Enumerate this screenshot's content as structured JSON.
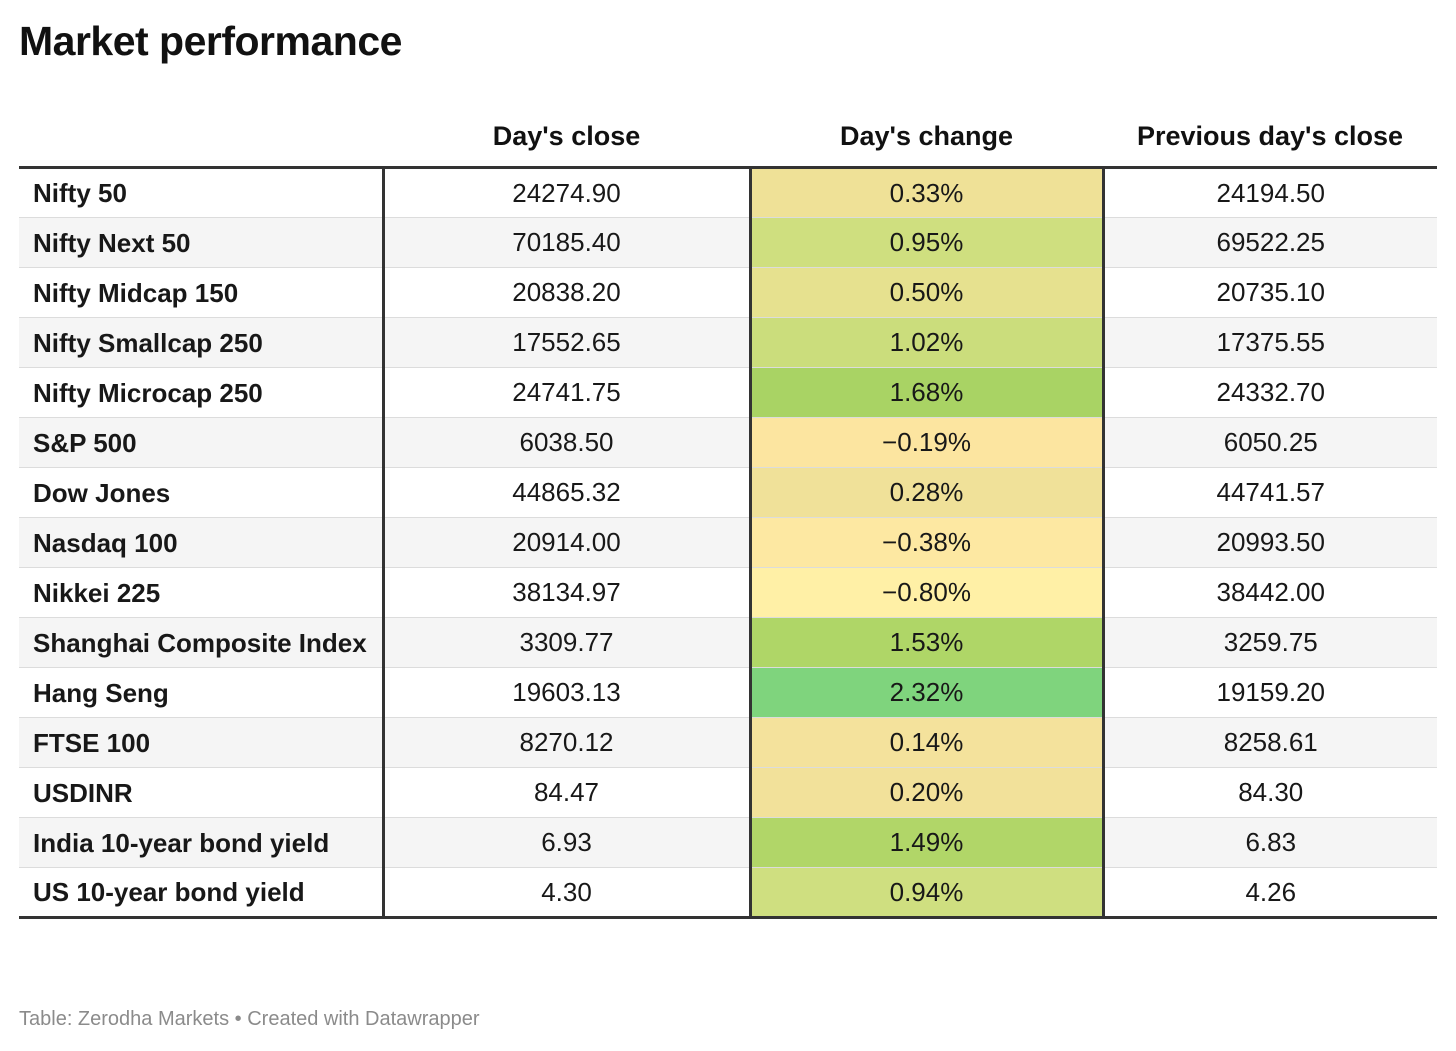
{
  "title": "Market performance",
  "footer": "Table: Zerodha Markets • Created with Datawrapper",
  "chart_data": {
    "type": "table",
    "title": "Market performance",
    "columns": [
      "",
      "Day's close",
      "Day's change",
      "Previous day's close"
    ],
    "heatmap_column": "Day's change",
    "rows": [
      {
        "name": "Nifty 50",
        "close": "24274.90",
        "change": "0.33%",
        "change_value": 0.33,
        "color": "#efe197",
        "prev": "24194.50"
      },
      {
        "name": "Nifty Next 50",
        "close": "70185.40",
        "change": "0.95%",
        "change_value": 0.95,
        "color": "#cfdf7f",
        "prev": "69522.25"
      },
      {
        "name": "Nifty Midcap 150",
        "close": "20838.20",
        "change": "0.50%",
        "change_value": 0.5,
        "color": "#e6e18f",
        "prev": "20735.10"
      },
      {
        "name": "Nifty Smallcap 250",
        "close": "17552.65",
        "change": "1.02%",
        "change_value": 1.02,
        "color": "#cbdd7c",
        "prev": "17375.55"
      },
      {
        "name": "Nifty Microcap 250",
        "close": "24741.75",
        "change": "1.68%",
        "change_value": 1.68,
        "color": "#a9d364",
        "prev": "24332.70"
      },
      {
        "name": "S&P 500",
        "close": "6038.50",
        "change": "−0.19%",
        "change_value": -0.19,
        "color": "#fce5a0",
        "prev": "6050.25"
      },
      {
        "name": "Dow Jones",
        "close": "44865.32",
        "change": "0.28%",
        "change_value": 0.28,
        "color": "#f0e199",
        "prev": "44741.57"
      },
      {
        "name": "Nasdaq 100",
        "close": "20914.00",
        "change": "−0.38%",
        "change_value": -0.38,
        "color": "#fde8a2",
        "prev": "20993.50"
      },
      {
        "name": "Nikkei 225",
        "close": "38134.97",
        "change": "−0.80%",
        "change_value": -0.8,
        "color": "#fff0a6",
        "prev": "38442.00"
      },
      {
        "name": "Shanghai Composite Index",
        "close": "3309.77",
        "change": "1.53%",
        "change_value": 1.53,
        "color": "#afd667",
        "prev": "3259.75"
      },
      {
        "name": "Hang Seng",
        "close": "19603.13",
        "change": "2.32%",
        "change_value": 2.32,
        "color": "#7fd47d",
        "prev": "19159.20"
      },
      {
        "name": "FTSE 100",
        "close": "8270.12",
        "change": "0.14%",
        "change_value": 0.14,
        "color": "#f4e29c",
        "prev": "8258.61"
      },
      {
        "name": "USDINR",
        "close": "84.47",
        "change": "0.20%",
        "change_value": 0.2,
        "color": "#f2e19a",
        "prev": "84.30"
      },
      {
        "name": "India 10-year bond yield",
        "close": "6.93",
        "change": "1.49%",
        "change_value": 1.49,
        "color": "#b1d668",
        "prev": "6.83"
      },
      {
        "name": "US 10-year bond yield",
        "close": "4.30",
        "change": "0.94%",
        "change_value": 0.94,
        "color": "#cfdf80",
        "prev": "4.26"
      }
    ]
  }
}
